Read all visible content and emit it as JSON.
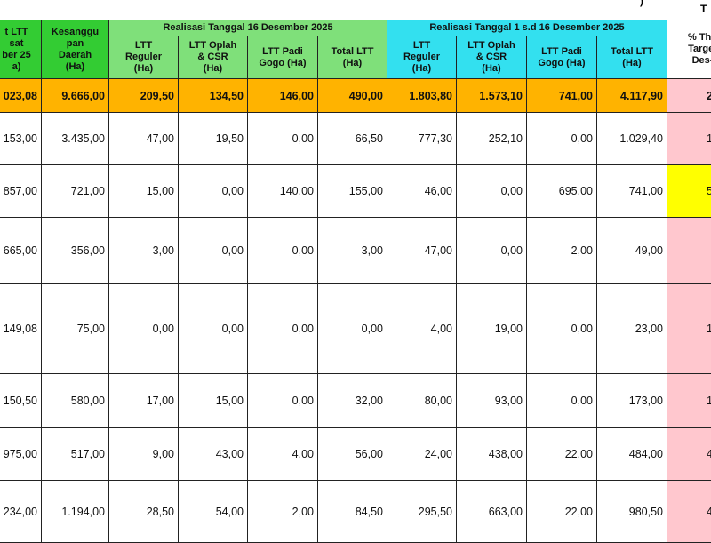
{
  "corner_marks": [
    ")",
    "T"
  ],
  "table": {
    "group_headers": [
      "Realisasi Tanggal  16 Desember 2025",
      "Realisasi Tanggal 1 s.d 16 Desember 2025"
    ],
    "headers": [
      [
        "t LTT",
        "sat",
        "ber 25",
        "a)"
      ],
      [
        "Kesanggu",
        "pan",
        "Daerah",
        "(Ha)"
      ],
      [
        "LTT",
        "Reguler",
        "(Ha)"
      ],
      [
        "LTT Oplah",
        "& CSR",
        "(Ha)"
      ],
      [
        "LTT Padi",
        "Gogo (Ha)"
      ],
      [
        "Total LTT",
        "(Ha)"
      ],
      [
        "LTT",
        "Reguler",
        "(Ha)"
      ],
      [
        "LTT Oplah",
        "& CSR",
        "(Ha)"
      ],
      [
        "LTT Padi",
        "Gogo (Ha)"
      ],
      [
        "Total LTT",
        "(Ha)"
      ],
      [
        "% Thd",
        "Target",
        "Des-"
      ]
    ],
    "rows": [
      [
        "023,08",
        "9.666,00",
        "209,50",
        "134,50",
        "146,00",
        "490,00",
        "1.803,80",
        "1.573,10",
        "741,00",
        "4.117,90",
        "2"
      ],
      [
        "153,00",
        "3.435,00",
        "47,00",
        "19,50",
        "0,00",
        "66,50",
        "777,30",
        "252,10",
        "0,00",
        "1.029,40",
        "1"
      ],
      [
        "857,00",
        "721,00",
        "15,00",
        "0,00",
        "140,00",
        "155,00",
        "46,00",
        "0,00",
        "695,00",
        "741,00",
        "5"
      ],
      [
        "665,00",
        "356,00",
        "3,00",
        "0,00",
        "0,00",
        "3,00",
        "47,00",
        "0,00",
        "2,00",
        "49,00",
        null
      ],
      [
        "149,08",
        "75,00",
        "0,00",
        "0,00",
        "0,00",
        "0,00",
        "4,00",
        "19,00",
        "0,00",
        "23,00",
        "1"
      ],
      [
        "150,50",
        "580,00",
        "17,00",
        "15,00",
        "0,00",
        "32,00",
        "80,00",
        "93,00",
        "0,00",
        "173,00",
        "1"
      ],
      [
        "975,00",
        "517,00",
        "9,00",
        "43,00",
        "4,00",
        "56,00",
        "24,00",
        "438,00",
        "22,00",
        "484,00",
        "4"
      ],
      [
        "234,00",
        "1.194,00",
        "28,50",
        "54,00",
        "2,00",
        "84,50",
        "295,50",
        "663,00",
        "22,00",
        "980,50",
        "4"
      ]
    ]
  }
}
